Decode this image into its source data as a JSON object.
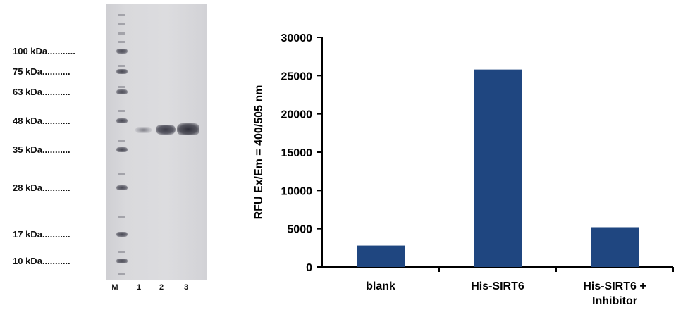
{
  "gel": {
    "markers": [
      {
        "label": "100 kDa...........",
        "size": 100
      },
      {
        "label": "75 kDa...........",
        "size": 75
      },
      {
        "label": "63 kDa...........",
        "size": 63
      },
      {
        "label": "48 kDa...........",
        "size": 48
      },
      {
        "label": "35 kDa...........",
        "size": 35
      },
      {
        "label": "28 kDa...........",
        "size": 28
      },
      {
        "label": "17 kDa...........",
        "size": 17
      },
      {
        "label": "10 kDa...........",
        "size": 10
      }
    ],
    "lanes": [
      "M",
      "1",
      "2",
      "3"
    ]
  },
  "chart_data": {
    "type": "bar",
    "categories": [
      "blank",
      "His-SIRT6",
      "His-SIRT6 + Inhibitor"
    ],
    "values": [
      2800,
      25800,
      5200
    ],
    "ylabel": "RFU Ex/Em = 400/505 nm",
    "xlabel": "",
    "ylim": [
      0,
      30000
    ],
    "yticks": [
      0,
      5000,
      10000,
      15000,
      20000,
      25000,
      30000
    ],
    "bar_color": "#1f4680",
    "grid": false
  }
}
